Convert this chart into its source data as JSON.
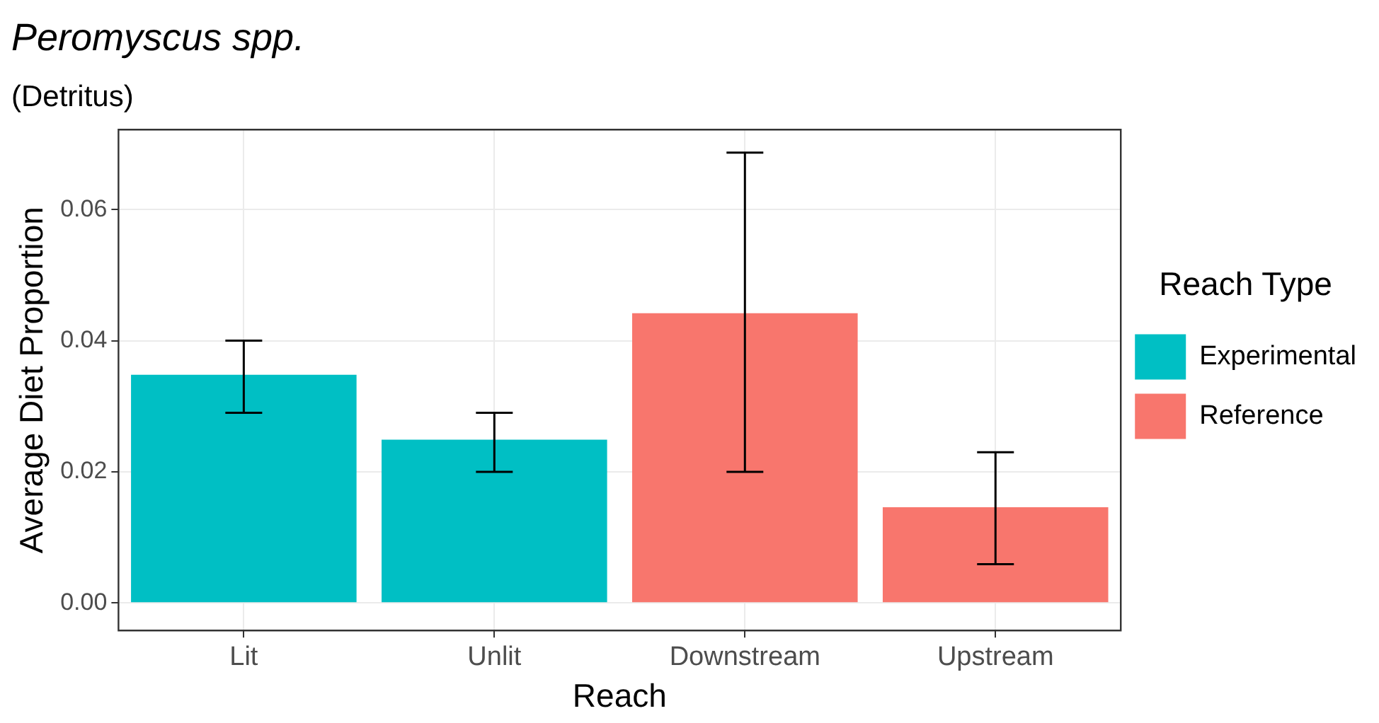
{
  "chart_data": {
    "type": "bar",
    "title": "Peromyscus spp.",
    "subtitle": "(Detritus)",
    "xlabel": "Reach",
    "ylabel": "Average Diet Proportion",
    "legend_title": "Reach Type",
    "categories": [
      "Lit",
      "Unlit",
      "Downstream",
      "Upstream"
    ],
    "series": [
      {
        "name": "Experimental",
        "color": "#00bfc4",
        "values": [
          0.0348,
          0.0249,
          null,
          null
        ],
        "errors": [
          [
            0.029,
            0.04
          ],
          [
            0.02,
            0.029
          ],
          null,
          null
        ]
      },
      {
        "name": "Reference",
        "color": "#f8766d",
        "values": [
          null,
          null,
          0.0442,
          0.0146
        ],
        "errors": [
          null,
          null,
          [
            0.02,
            0.0687
          ],
          [
            0.0059,
            0.023
          ]
        ]
      }
    ],
    "ylim": [
      -0.0042,
      0.0722
    ],
    "yticks": [
      {
        "value": 0,
        "label": "0.00"
      },
      {
        "value": 0.02,
        "label": "0.02"
      },
      {
        "value": 0.04,
        "label": "0.04"
      },
      {
        "value": 0.06,
        "label": "0.06"
      }
    ],
    "grid": true,
    "legend": "right"
  }
}
